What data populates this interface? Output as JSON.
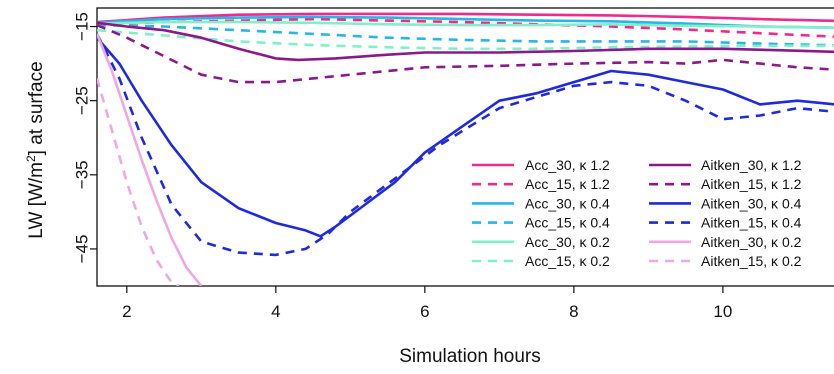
{
  "chart_data": {
    "type": "line",
    "xlabel": "Simulation hours",
    "ylabel": "LW [W/m2] at surface",
    "ylabel_parts": {
      "pre": "LW [W/m",
      "sup": "2",
      "post": "] at surface"
    },
    "xlim": [
      1.6,
      11.8
    ],
    "ylim": [
      -50,
      -12.5
    ],
    "x_ticks": [
      2,
      4,
      6,
      8,
      10
    ],
    "y_ticks": [
      -15,
      -25,
      -35,
      -45
    ],
    "x_tick_labels": [
      "2",
      "4",
      "6",
      "8",
      "10"
    ],
    "y_tick_labels": [
      "−15",
      "−25",
      "−35",
      "−45"
    ],
    "grid": false,
    "legend_placement": "bottom-right",
    "series": [
      {
        "name": "Acc_30, κ 1.2",
        "color": "#ee2a8a",
        "dash": "solid",
        "x": [
          1.6,
          2.5,
          3.5,
          4.5,
          5.5,
          6.5,
          7.5,
          8.5,
          9.5,
          10.5,
          11.8
        ],
        "y": [
          -14.4,
          -13.8,
          -13.4,
          -13.3,
          -13.3,
          -13.3,
          -13.4,
          -13.5,
          -13.7,
          -14.0,
          -14.3
        ]
      },
      {
        "name": "Acc_15, κ 1.2",
        "color": "#ee2a8a",
        "dash": "dashed",
        "x": [
          1.6,
          2.5,
          3.5,
          4.5,
          5.5,
          6.5,
          7.5,
          8.5,
          9.5,
          10.5,
          11.8
        ],
        "y": [
          -14.7,
          -14.4,
          -14.2,
          -14.0,
          -14.2,
          -14.4,
          -14.7,
          -15.0,
          -15.4,
          -15.9,
          -16.5
        ]
      },
      {
        "name": "Acc_30, κ 0.4",
        "color": "#2ab4e8",
        "dash": "solid",
        "x": [
          1.6,
          2.5,
          3.5,
          4.5,
          5.5,
          6.5,
          7.5,
          8.5,
          9.5,
          10.5,
          11.8
        ],
        "y": [
          -14.5,
          -14.0,
          -13.8,
          -13.7,
          -13.8,
          -14.0,
          -14.2,
          -14.3,
          -14.6,
          -15.0,
          -15.2
        ]
      },
      {
        "name": "Acc_15, κ 0.4",
        "color": "#2ab4e8",
        "dash": "dashed",
        "x": [
          1.6,
          2.5,
          3.5,
          4.5,
          5.5,
          6.5,
          7.5,
          8.5,
          9.5,
          10.5,
          11.8
        ],
        "y": [
          -14.8,
          -15.0,
          -15.5,
          -16.0,
          -16.5,
          -16.8,
          -17.0,
          -17.0,
          -17.0,
          -17.3,
          -17.6
        ]
      },
      {
        "name": "Acc_30, κ 0.2",
        "color": "#7ff0c8",
        "dash": "solid",
        "x": [
          1.6,
          2.5,
          3.5,
          4.5,
          5.5,
          6.5,
          7.5,
          8.5,
          9.5,
          10.5,
          11.8
        ],
        "y": [
          -14.6,
          -14.4,
          -14.4,
          -14.5,
          -14.7,
          -14.8,
          -14.8,
          -14.7,
          -14.9,
          -15.0,
          -15.2
        ]
      },
      {
        "name": "Acc_15, κ 0.2",
        "color": "#7ff0c8",
        "dash": "dashed",
        "x": [
          1.6,
          2.5,
          3.5,
          4.5,
          5.5,
          6.5,
          7.5,
          8.5,
          9.5,
          10.5,
          11.8
        ],
        "y": [
          -15.5,
          -16.2,
          -17.0,
          -17.5,
          -17.8,
          -18.0,
          -18.0,
          -17.8,
          -17.7,
          -17.6,
          -17.6
        ]
      },
      {
        "name": "Aitken_30, κ 1.2",
        "color": "#8a1a8a",
        "dash": "solid",
        "x": [
          1.6,
          2.0,
          2.5,
          3.0,
          3.5,
          4.0,
          4.3,
          4.8,
          5.5,
          6.0,
          7.0,
          8.0,
          9.0,
          10.0,
          10.8,
          11.8
        ],
        "y": [
          -14.5,
          -15.0,
          -15.5,
          -16.5,
          -18.0,
          -19.3,
          -19.5,
          -19.3,
          -18.8,
          -18.5,
          -18.5,
          -18.3,
          -18.0,
          -18.0,
          -18.2,
          -18.5
        ]
      },
      {
        "name": "Aitken_15, κ 1.2",
        "color": "#8a1a8a",
        "dash": "dashed",
        "x": [
          1.6,
          2.0,
          2.5,
          3.0,
          3.5,
          4.0,
          4.5,
          5.0,
          5.5,
          6.0,
          7.0,
          8.0,
          9.0,
          9.5,
          10.0,
          10.5,
          11.0,
          11.8
        ],
        "y": [
          -14.8,
          -16.5,
          -19.0,
          -21.5,
          -22.5,
          -22.5,
          -22.0,
          -21.5,
          -21.0,
          -20.5,
          -20.3,
          -20.0,
          -19.8,
          -20.0,
          -19.5,
          -20.0,
          -20.5,
          -21.0
        ]
      },
      {
        "name": "Aitken_30, κ 0.4",
        "color": "#1f2ad8",
        "dash": "solid",
        "x": [
          1.6,
          1.9,
          2.2,
          2.6,
          3.0,
          3.5,
          4.0,
          4.4,
          4.6,
          4.8,
          5.2,
          5.6,
          6.0,
          6.5,
          7.0,
          7.5,
          8.0,
          8.5,
          9.0,
          9.5,
          10.0,
          10.5,
          11.0,
          11.5,
          11.8
        ],
        "y": [
          -16.5,
          -20.0,
          -25.0,
          -31.0,
          -36.0,
          -39.5,
          -41.5,
          -42.5,
          -43.3,
          -42.0,
          -39.0,
          -36.0,
          -32.0,
          -28.5,
          -25.0,
          -24.0,
          -22.5,
          -21.0,
          -21.5,
          -22.5,
          -23.5,
          -25.5,
          -25.0,
          -25.5,
          -25.8
        ]
      },
      {
        "name": "Aitken_15, κ 0.4",
        "color": "#1f2ad8",
        "dash": "dashed",
        "x": [
          1.6,
          1.9,
          2.2,
          2.6,
          3.0,
          3.5,
          4.0,
          4.4,
          4.7,
          5.0,
          5.4,
          5.8,
          6.2,
          6.6,
          7.0,
          7.5,
          8.0,
          8.5,
          9.0,
          9.5,
          10.0,
          10.5,
          11.0,
          11.5,
          11.8
        ],
        "y": [
          -16.0,
          -22.0,
          -30.0,
          -39.0,
          -44.0,
          -45.5,
          -45.8,
          -45.0,
          -43.0,
          -40.0,
          -37.0,
          -34.0,
          -31.0,
          -28.5,
          -26.0,
          -24.5,
          -23.0,
          -22.5,
          -23.0,
          -25.0,
          -27.5,
          -27.0,
          -26.0,
          -26.5,
          -28.0
        ]
      },
      {
        "name": "Aitken_30, κ 0.2",
        "color": "#f0a8e0",
        "dash": "solid",
        "x": [
          1.6,
          1.8,
          2.0,
          2.2,
          2.4,
          2.6,
          2.8,
          3.0
        ],
        "y": [
          -16.0,
          -21.0,
          -27.0,
          -33.0,
          -38.5,
          -43.5,
          -47.5,
          -50.0
        ]
      },
      {
        "name": "Aitken_15, κ 0.2",
        "color": "#f0a8e0",
        "dash": "dashed",
        "x": [
          1.6,
          1.8,
          2.0,
          2.2,
          2.4,
          2.6,
          2.7
        ],
        "y": [
          -22.0,
          -29.0,
          -36.0,
          -42.0,
          -46.5,
          -49.5,
          -50.0
        ]
      }
    ]
  }
}
